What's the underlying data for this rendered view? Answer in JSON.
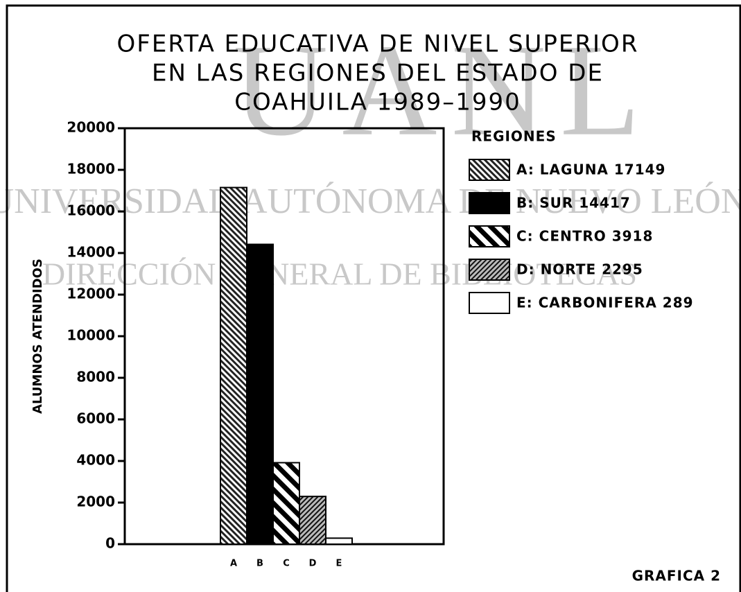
{
  "chart_data": {
    "type": "bar",
    "title": [
      "OFERTA EDUCATIVA DE NIVEL SUPERIOR",
      "EN LAS REGIONES DEL ESTADO DE",
      "COAHUILA 1989–1990"
    ],
    "y_label": "ALUMNOS ATENDIDOS",
    "categories": [
      "A",
      "B",
      "C",
      "D",
      "E"
    ],
    "values": [
      17149,
      14417,
      3918,
      2295,
      289
    ],
    "patterns": [
      "dense-hatch",
      "solid",
      "wide-hatch",
      "cross-hatch",
      "empty"
    ],
    "color": "#000000",
    "legend_title": "REGIONES",
    "legend": [
      "A: LAGUNA 17149",
      "B: SUR 14417",
      "C: CENTRO 3918",
      "D: NORTE 2295",
      "E: CARBONIFERA 289"
    ],
    "ylim": [
      0,
      20000
    ],
    "yticks": [
      0,
      2000,
      4000,
      6000,
      8000,
      10000,
      12000,
      14000,
      16000,
      18000,
      20000
    ],
    "note": "GRAFICA 2",
    "watermark": [
      "UANL",
      "UNIVERSIDAD AUTÓNOMA DE NUEVO LEÓN",
      "DIRECCIÓN GENERAL DE BIBLIOTECAS"
    ]
  }
}
